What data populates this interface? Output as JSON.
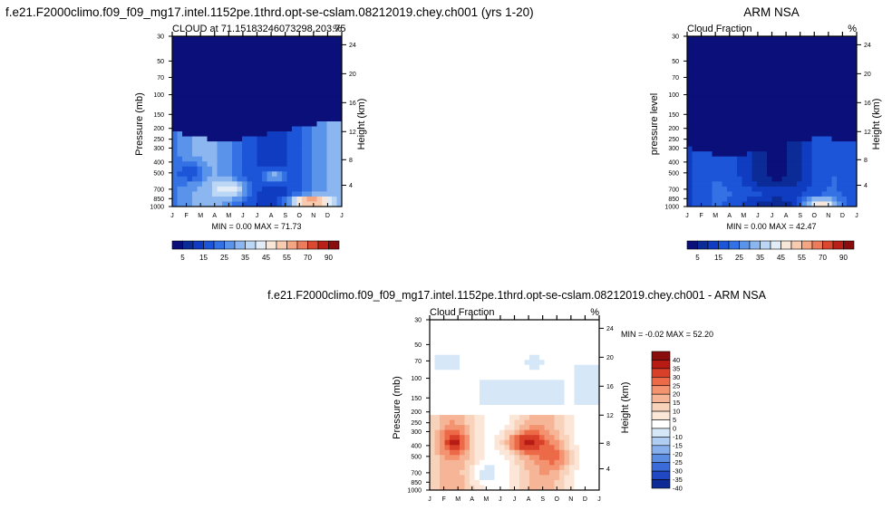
{
  "chart_data": [
    {
      "type": "heatmap",
      "title": "f.e21.F2000climo.f09_f09_mg17.intel.1152pe.1thrd.opt-se-cslam.08212019.chey.ch001 (yrs 1-20)",
      "subtitle_left": "CLOUD at 71.15183246073298,203.75",
      "subtitle_right": "%",
      "ylabel": "Pressure (mb)",
      "y2label": "Height (km)",
      "x_ticks": [
        "J",
        "F",
        "M",
        "A",
        "M",
        "J",
        "J",
        "A",
        "S",
        "O",
        "N",
        "D",
        "J"
      ],
      "y_ticks": [
        30,
        50,
        70,
        100,
        150,
        200,
        250,
        300,
        400,
        500,
        700,
        850,
        1000
      ],
      "y2_ticks": [
        24,
        20,
        16,
        12,
        8,
        4
      ],
      "stats": "MIN =   0.00 MAX =  71.73",
      "colorbar_labels": [
        "5",
        "15",
        "25",
        "35",
        "45",
        "55",
        "70",
        "90"
      ],
      "colorbar_levels": [
        0,
        5,
        10,
        15,
        20,
        25,
        30,
        35,
        40,
        45,
        50,
        55,
        60,
        70,
        80,
        90
      ],
      "units": "%"
    },
    {
      "type": "heatmap",
      "title": "ARM NSA",
      "subtitle_left": "Cloud Fraction",
      "subtitle_right": "%",
      "ylabel": "pressure level",
      "y2label": "Height (km)",
      "x_ticks": [
        "J",
        "F",
        "M",
        "A",
        "M",
        "J",
        "J",
        "A",
        "S",
        "O",
        "N",
        "D",
        "J"
      ],
      "y_ticks": [
        30,
        50,
        70,
        100,
        150,
        200,
        250,
        300,
        400,
        500,
        700,
        850,
        1000
      ],
      "y2_ticks": [
        24,
        20,
        16,
        12,
        8,
        4
      ],
      "stats": "MIN =   0.00 MAX =  42.47",
      "colorbar_labels": [
        "5",
        "15",
        "25",
        "35",
        "45",
        "55",
        "70",
        "90"
      ],
      "colorbar_levels": [
        0,
        5,
        10,
        15,
        20,
        25,
        30,
        35,
        40,
        45,
        50,
        55,
        60,
        70,
        80,
        90
      ],
      "units": "%"
    },
    {
      "type": "heatmap",
      "title": "f.e21.F2000climo.f09_f09_mg17.intel.1152pe.1thrd.opt-se-cslam.08212019.chey.ch001 - ARM NSA",
      "subtitle_left": "Cloud Fraction",
      "subtitle_right": "%",
      "ylabel": "Pressure (mb)",
      "y2label": "Height (km)",
      "x_ticks": [
        "J",
        "F",
        "M",
        "A",
        "M",
        "J",
        "J",
        "A",
        "S",
        "O",
        "N",
        "D",
        "J"
      ],
      "y_ticks": [
        30,
        50,
        70,
        100,
        150,
        200,
        250,
        300,
        400,
        500,
        700,
        850,
        1000
      ],
      "y2_ticks": [
        24,
        20,
        16,
        12,
        8,
        4
      ],
      "stats": "MIN =  -0.02 MAX =  52.20",
      "colorbar_labels": [
        "40",
        "35",
        "30",
        "25",
        "20",
        "15",
        "10",
        "5",
        "0",
        "-10",
        "-15",
        "-20",
        "-25",
        "-30",
        "-35",
        "-40"
      ],
      "units": "%"
    }
  ],
  "palette": {
    "cloud": [
      "#0a0f7a",
      "#0b2b96",
      "#0f3cc0",
      "#1c55d8",
      "#3471e4",
      "#5a94ea",
      "#8cb6f0",
      "#bcd6f5",
      "#e2ecf7",
      "#f8e6d8",
      "#f8cbb0",
      "#f4a582",
      "#ec7c5c",
      "#d9482f",
      "#b82018",
      "#8a0d0d"
    ],
    "diff": [
      "#8a0d0d",
      "#b81a14",
      "#d9402a",
      "#ec6a48",
      "#f39370",
      "#f6b596",
      "#f9d2bb",
      "#fbe6d8",
      "#ffffff",
      "#d6e7f8",
      "#b0cef2",
      "#87b0ec",
      "#5b8de2",
      "#3a6bd8",
      "#1f48c2",
      "#0e2a94"
    ]
  }
}
